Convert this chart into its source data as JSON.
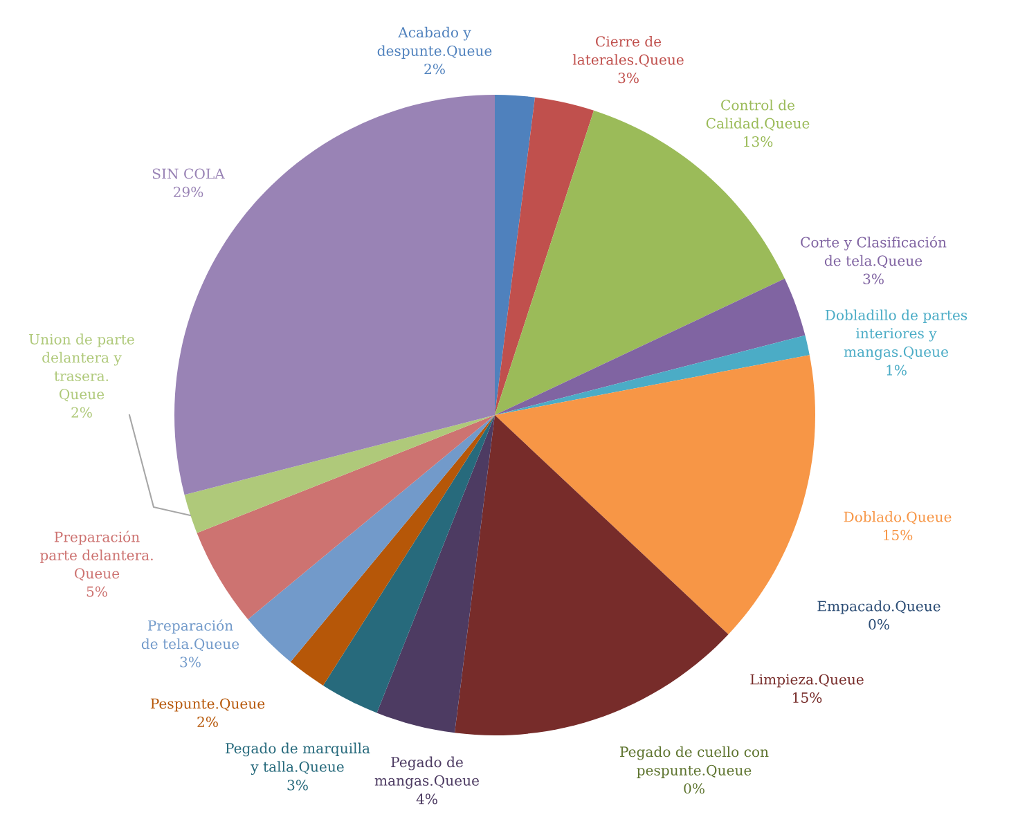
{
  "chart_data": {
    "type": "pie",
    "categories": [
      "Acabado y\ndespunte.Queue",
      "Cierre de\nlaterales.Queue",
      "Control de\nCalidad.Queue",
      "Corte y Clasificación\nde tela.Queue",
      "Dobladillo de partes\ninteriores y\nmangas.Queue",
      "Doblado.Queue",
      "Empacado.Queue",
      "Limpieza.Queue",
      "Pegado de cuello con\npespunte.Queue",
      "Pegado de\nmangas.Queue",
      "Pegado de marquilla\ny talla.Queue",
      "Pespunte.Queue",
      "Preparación\nde tela.Queue",
      "Preparación\nparte delantera.\nQueue",
      "Union de parte\ndelantera y\ntrasera.\nQueue",
      "SIN COLA"
    ],
    "values": [
      2,
      3,
      13,
      3,
      1,
      15,
      0,
      15,
      0,
      4,
      3,
      2,
      3,
      5,
      2,
      29
    ],
    "value_labels": [
      "2%",
      "3%",
      "13%",
      "3%",
      "1%",
      "15%",
      "0%",
      "15%",
      "0%",
      "4%",
      "3%",
      "2%",
      "3%",
      "5%",
      "2%",
      "29%"
    ],
    "colors": [
      "#4f81bd",
      "#c0504d",
      "#9bbb59",
      "#8064a2",
      "#4bacc6",
      "#f79646",
      "#2c4d75",
      "#772c2a",
      "#5f7530",
      "#4d3b62",
      "#276a7c",
      "#b65708",
      "#729aca",
      "#cd7371",
      "#afc97a",
      "#9983b5"
    ],
    "legend": false
  }
}
